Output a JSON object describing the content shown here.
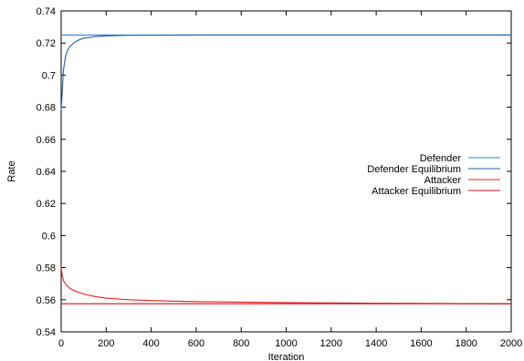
{
  "chart_data": {
    "type": "line",
    "title": "",
    "xlabel": "Iteration",
    "ylabel": "Rate",
    "xlim": [
      0,
      2000
    ],
    "ylim": [
      0.54,
      0.74
    ],
    "xticks": [
      0,
      200,
      400,
      600,
      800,
      1000,
      1200,
      1400,
      1600,
      1800,
      2000
    ],
    "yticks": [
      0.54,
      0.56,
      0.58,
      0.6,
      0.62,
      0.64,
      0.66,
      0.68,
      0.7,
      0.72,
      0.74
    ],
    "ytick_labels": [
      "0.54",
      "0.56",
      "0.58",
      "0.6",
      "0.62",
      "0.64",
      "0.66",
      "0.68",
      "0.7",
      "0.72",
      "0.74"
    ],
    "grid": false,
    "legend_position": "right",
    "series": [
      {
        "name": "Defender",
        "color": "#3b7fd6",
        "x": [
          0,
          2000
        ],
        "y": [
          0.725,
          0.725
        ]
      },
      {
        "name": "Defender Equilibrium",
        "color": "#1f5fa8",
        "x": [
          0,
          5,
          10,
          20,
          30,
          40,
          60,
          80,
          100,
          150,
          200,
          300,
          600,
          1000,
          1500,
          2000
        ],
        "y": [
          0.678,
          0.69,
          0.703,
          0.712,
          0.716,
          0.718,
          0.7205,
          0.722,
          0.723,
          0.724,
          0.7245,
          0.7248,
          0.725,
          0.725,
          0.725,
          0.725
        ]
      },
      {
        "name": "Attacker",
        "color": "#e62020",
        "x": [
          0,
          5,
          10,
          20,
          40,
          60,
          80,
          100,
          150,
          200,
          300,
          400,
          600,
          800,
          1000,
          1200,
          1400,
          1600,
          1800,
          2000
        ],
        "y": [
          0.58,
          0.575,
          0.572,
          0.5695,
          0.567,
          0.5655,
          0.5645,
          0.5635,
          0.562,
          0.561,
          0.56,
          0.5595,
          0.5588,
          0.5585,
          0.5582,
          0.558,
          0.5578,
          0.5577,
          0.5576,
          0.5575
        ]
      },
      {
        "name": "Attacker Equilibrium",
        "color": "#cc1111",
        "x": [
          0,
          2000
        ],
        "y": [
          0.5575,
          0.5575
        ]
      }
    ]
  }
}
